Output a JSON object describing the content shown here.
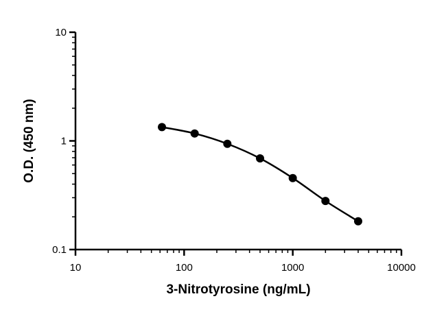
{
  "chart_data": {
    "type": "scatter",
    "xlabel": "3-Nitrotyrosine (ng/mL)",
    "ylabel": "O.D. (450 nm)",
    "x_scale": "log",
    "y_scale": "log",
    "xlim": [
      10,
      10000
    ],
    "ylim": [
      0.1,
      10
    ],
    "x_ticks": [
      10,
      100,
      1000,
      10000
    ],
    "x_tick_labels": [
      "10",
      "100",
      "1000",
      "10000"
    ],
    "y_ticks": [
      0.1,
      1,
      10
    ],
    "y_tick_labels": [
      "0.1",
      "1",
      "10"
    ],
    "grid": false,
    "series": [
      {
        "x": [
          62.5,
          125,
          250,
          500,
          1000,
          2000,
          4000
        ],
        "y": [
          1.34,
          1.17,
          0.94,
          0.69,
          0.455,
          0.28,
          0.182
        ],
        "fit": "4PL curve"
      }
    ],
    "colors": {
      "marker": "#000000",
      "line": "#000000"
    }
  }
}
